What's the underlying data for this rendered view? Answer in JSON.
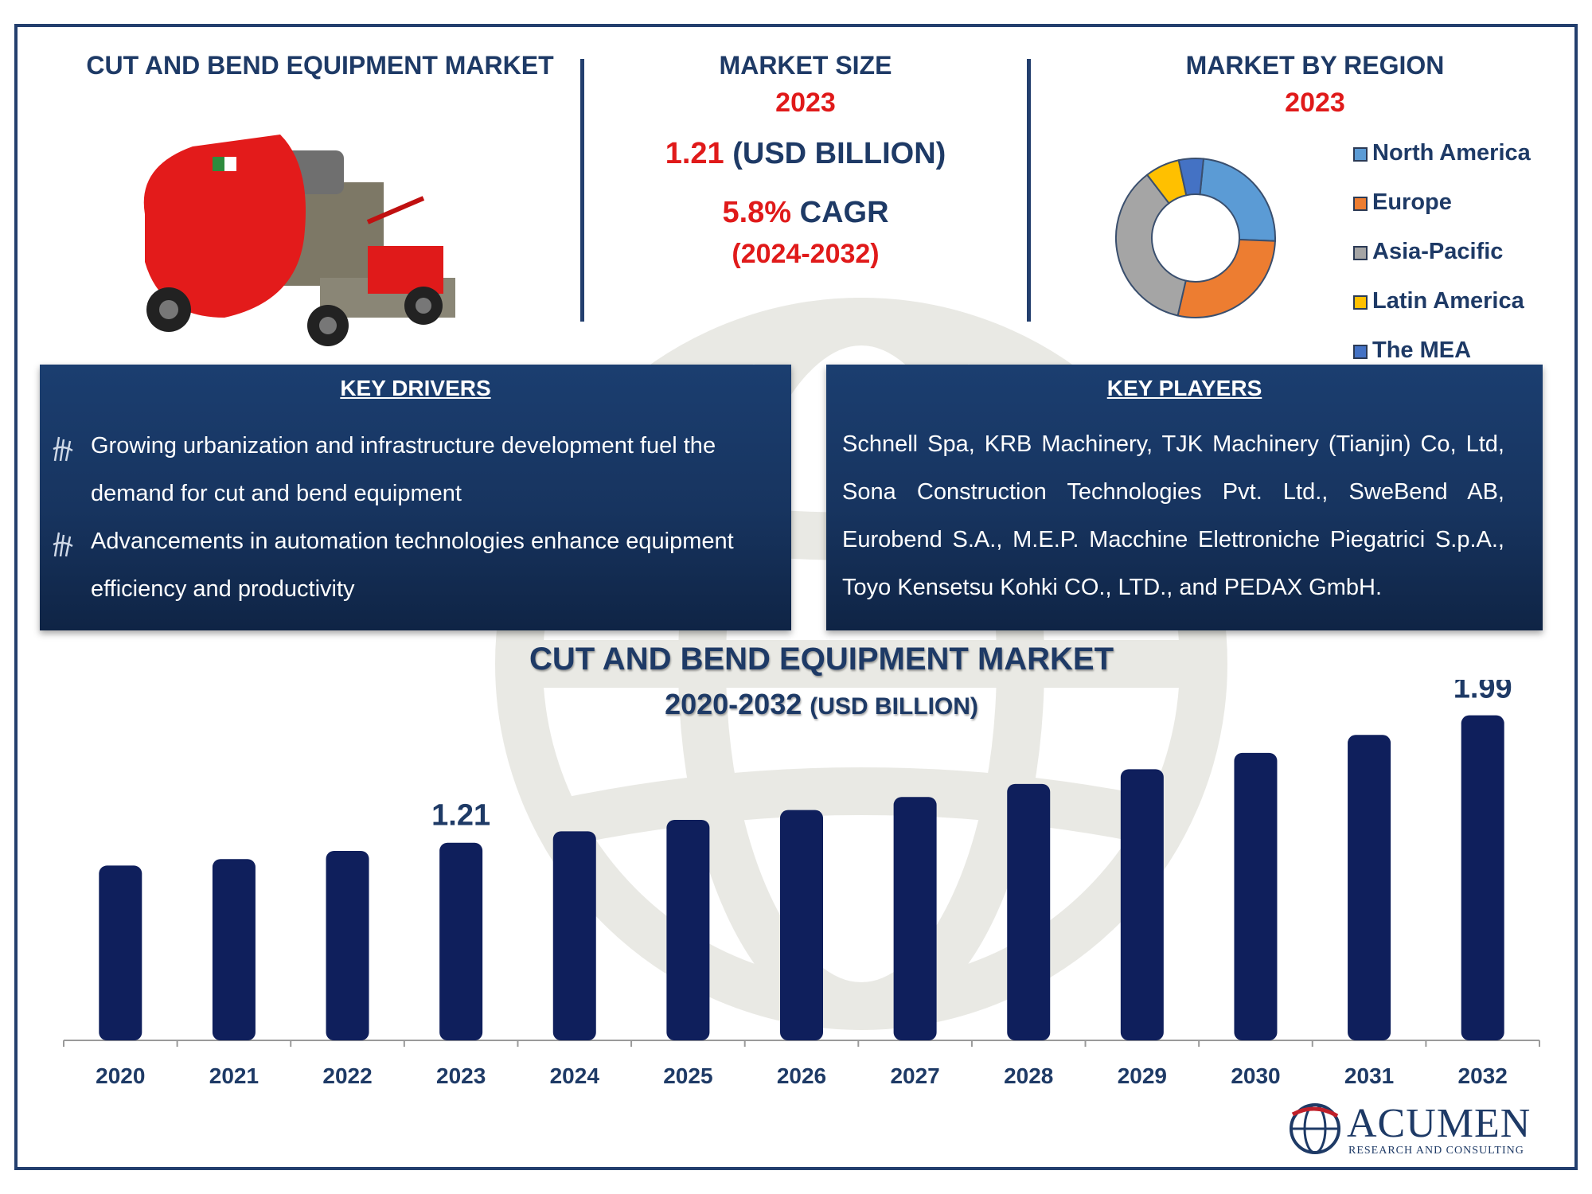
{
  "header": {
    "title": "CUT AND BEND EQUIPMENT MARKET",
    "market_size_label": "MARKET SIZE",
    "market_size_year": "2023",
    "market_value": "1.21",
    "market_unit": "(USD BILLION)",
    "cagr_value": "5.8%",
    "cagr_label": "CAGR",
    "cagr_period": "(2024-2032)",
    "region_label": "MARKET BY REGION",
    "region_year": "2023"
  },
  "region_chart": {
    "type": "pie",
    "legend": [
      "North America",
      "Europe",
      "Asia-Pacific",
      "Latin America",
      "The MEA"
    ],
    "values": [
      24,
      28,
      36,
      7,
      5
    ],
    "colors": [
      "#5b9bd5",
      "#ed7d31",
      "#a5a5a5",
      "#ffc000",
      "#4472c4"
    ]
  },
  "drivers": {
    "title": "KEY DRIVERS",
    "items": [
      "Growing urbanization and infrastructure development fuel the demand for cut and bend equipment",
      "Advancements in automation technologies enhance equipment efficiency and productivity"
    ]
  },
  "players": {
    "title": "KEY PLAYERS",
    "text": "Schnell Spa, KRB Machinery, TJK Machinery (Tianjin) Co, Ltd, Sona Construction Technologies Pvt. Ltd., SweBend AB, Eurobend S.A., M.E.P. Macchine Elettroniche Piegatrici S.p.A., Toyo Kensetsu Kohki CO., LTD., and PEDAX GmbH."
  },
  "chart_title": {
    "line1": "CUT AND BEND EQUIPMENT MARKET",
    "line2_main": "2020-2032",
    "line2_unit": "(USD BILLION)"
  },
  "chart_data": {
    "type": "bar",
    "categories": [
      "2020",
      "2021",
      "2022",
      "2023",
      "2024",
      "2025",
      "2026",
      "2027",
      "2028",
      "2029",
      "2030",
      "2031",
      "2032"
    ],
    "values": [
      1.07,
      1.11,
      1.16,
      1.21,
      1.28,
      1.35,
      1.41,
      1.49,
      1.57,
      1.66,
      1.76,
      1.87,
      1.99
    ],
    "data_labels": {
      "2023": "1.21",
      "2032": "1.99"
    },
    "ylim": [
      0,
      2.0
    ],
    "bar_color": "#0f1f5c"
  },
  "brand": {
    "name": "ACUMEN",
    "tagline": "RESEARCH AND CONSULTING"
  }
}
